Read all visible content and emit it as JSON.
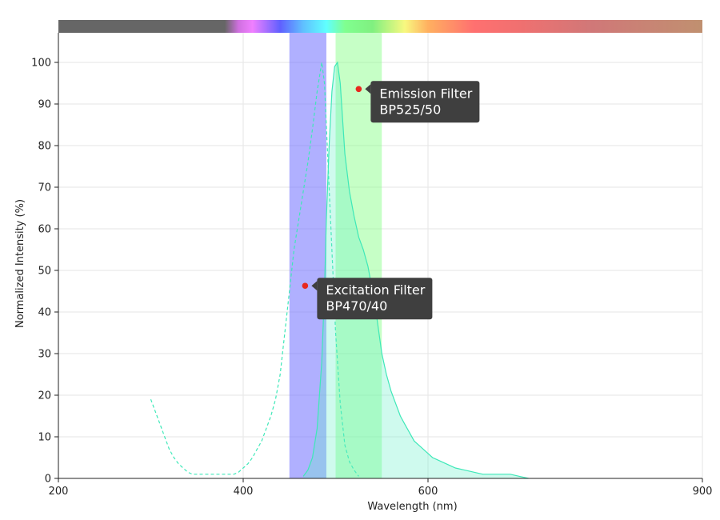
{
  "chart_data": {
    "type": "area",
    "xlabel": "Wavelength (nm)",
    "ylabel": "Normalized Intensity (%)",
    "xlim": [
      200,
      900
    ],
    "ylim": [
      0,
      108
    ],
    "x_ticks": [
      {
        "value": 200,
        "label": "200"
      },
      {
        "value": 400,
        "label": "400"
      },
      {
        "value": 600,
        "label": "600"
      },
      {
        "value": 900,
        "label": "900"
      }
    ],
    "y_ticks": [
      {
        "value": 0,
        "label": "0"
      },
      {
        "value": 10,
        "label": "10"
      },
      {
        "value": 20,
        "label": "20"
      },
      {
        "value": 30,
        "label": "30"
      },
      {
        "value": 40,
        "label": "40"
      },
      {
        "value": 50,
        "label": "50"
      },
      {
        "value": 60,
        "label": "60"
      },
      {
        "value": 70,
        "label": "70"
      },
      {
        "value": 80,
        "label": "80"
      },
      {
        "value": 90,
        "label": "90"
      },
      {
        "value": 100,
        "label": "100"
      }
    ],
    "grid": true,
    "spectrum_bar": {
      "stops": [
        {
          "x": 200,
          "color": "#666666"
        },
        {
          "x": 380,
          "color": "#666666"
        },
        {
          "x": 395,
          "color": "#d070e0"
        },
        {
          "x": 410,
          "color": "#f080ff"
        },
        {
          "x": 440,
          "color": "#6060ff"
        },
        {
          "x": 465,
          "color": "#60c0ff"
        },
        {
          "x": 490,
          "color": "#60ffff"
        },
        {
          "x": 510,
          "color": "#80ff90"
        },
        {
          "x": 540,
          "color": "#80f080"
        },
        {
          "x": 575,
          "color": "#f8f880"
        },
        {
          "x": 600,
          "color": "#ffb060"
        },
        {
          "x": 650,
          "color": "#ff7070"
        },
        {
          "x": 700,
          "color": "#f07070"
        },
        {
          "x": 780,
          "color": "#d07878"
        },
        {
          "x": 900,
          "color": "#c09070"
        }
      ]
    },
    "filters": [
      {
        "x0": 450,
        "x1": 490,
        "color": "#7070ff",
        "opacity": 0.55
      },
      {
        "x0": 500,
        "x1": 550,
        "color": "#80ff80",
        "opacity": 0.45
      }
    ],
    "series": [
      {
        "style": "dashed",
        "color": "#3ee8b8",
        "fill": false,
        "x": [
          300,
          305,
          310,
          315,
          320,
          325,
          330,
          335,
          340,
          345,
          350,
          360,
          370,
          380,
          390,
          395,
          400,
          405,
          410,
          415,
          420,
          425,
          430,
          435,
          440,
          445,
          450,
          455,
          460,
          465,
          470,
          475,
          480,
          485,
          488,
          490,
          495,
          500,
          505,
          510,
          515,
          520,
          525
        ],
        "y": [
          19,
          16,
          13,
          10,
          7,
          5,
          3.5,
          2.5,
          1.5,
          1,
          1,
          1,
          1,
          1,
          1,
          1.5,
          2.5,
          3.5,
          5,
          7,
          9,
          12,
          15,
          19,
          25,
          35,
          45,
          55,
          62,
          69,
          76,
          84,
          93,
          100,
          95,
          85,
          60,
          35,
          18,
          8,
          4,
          2,
          0.5
        ]
      },
      {
        "style": "solid",
        "color": "#3ee8b8",
        "fill": true,
        "fill_color": "#5ff0c8",
        "fill_opacity": 0.3,
        "x": [
          465,
          470,
          475,
          480,
          485,
          488,
          490,
          493,
          496,
          499,
          502,
          505,
          508,
          510,
          515,
          520,
          525,
          530,
          535,
          540,
          545,
          550,
          555,
          560,
          565,
          570,
          575,
          580,
          585,
          590,
          595,
          600,
          605,
          610,
          615,
          620,
          625,
          630,
          640,
          650,
          660,
          670,
          680,
          690,
          700,
          710
        ],
        "y": [
          0.5,
          2,
          5,
          12,
          28,
          45,
          62,
          80,
          93,
          99,
          100,
          95,
          85,
          78,
          69,
          63,
          58,
          55,
          51,
          45,
          38,
          30,
          25,
          21,
          18,
          15,
          13,
          11,
          9,
          8,
          7,
          6,
          5,
          4.5,
          4,
          3.5,
          3,
          2.5,
          2,
          1.5,
          1,
          1,
          1,
          1,
          0.5,
          0
        ]
      }
    ],
    "annotations": [
      {
        "x": 467,
        "y": 46.3,
        "lines": [
          "Excitation Filter",
          "BP470/40"
        ]
      },
      {
        "x": 525,
        "y": 93.6,
        "lines": [
          "Emission Filter",
          "BP525/50"
        ]
      }
    ]
  }
}
